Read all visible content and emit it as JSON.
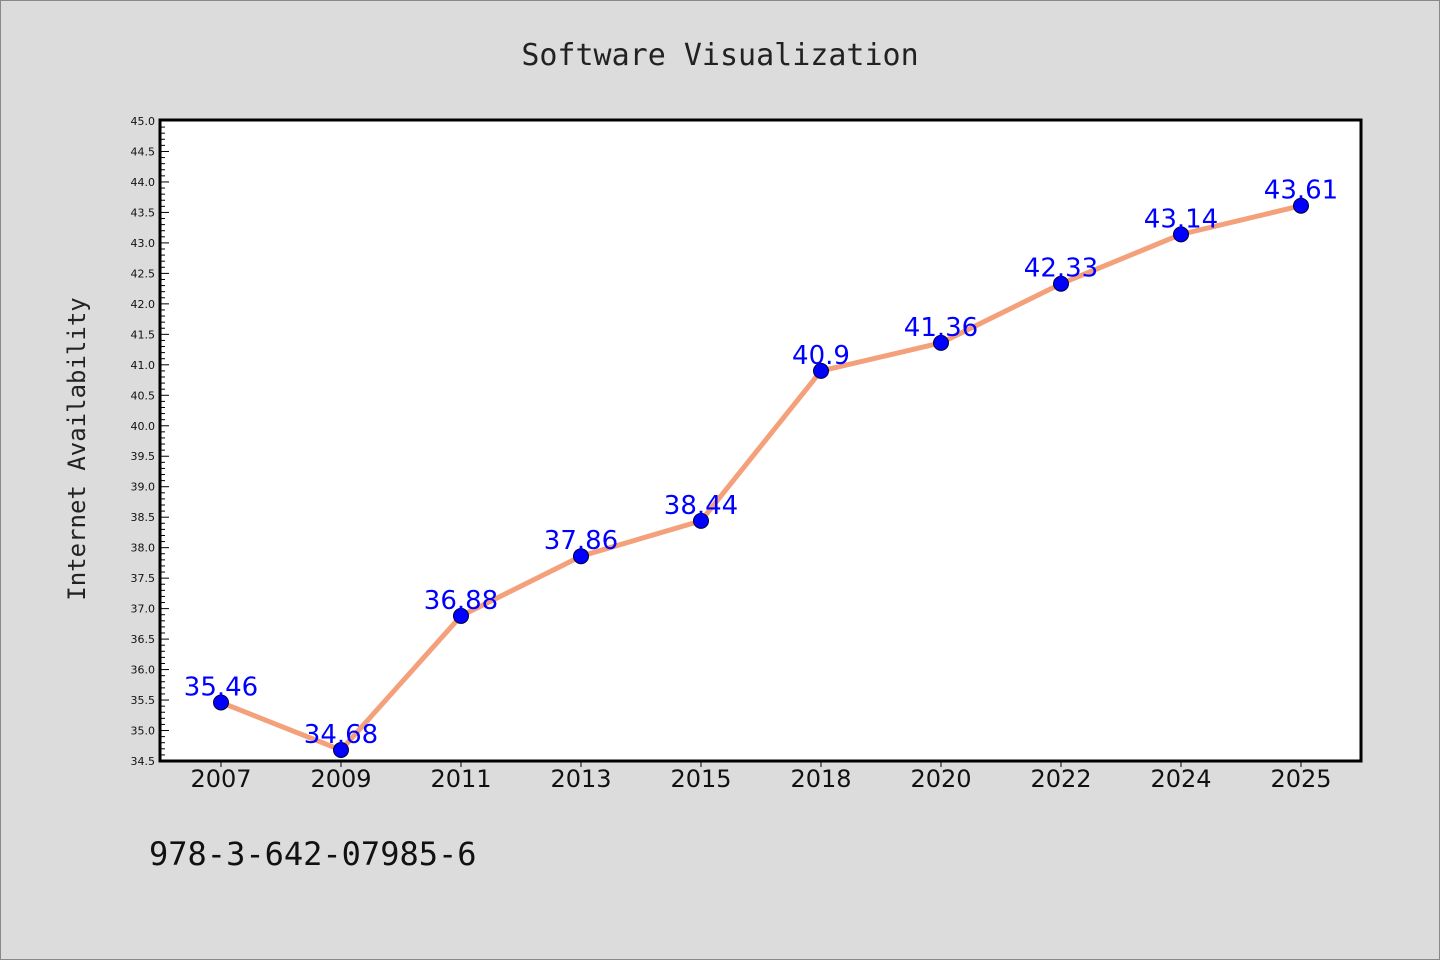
{
  "chart_data": {
    "type": "line",
    "title": "Software Visualization",
    "xlabel": "",
    "ylabel": "Internet Availability",
    "categories": [
      "2007",
      "2009",
      "2011",
      "2013",
      "2015",
      "2018",
      "2020",
      "2022",
      "2024",
      "2025"
    ],
    "series": [
      {
        "values": [
          35.46,
          34.68,
          36.88,
          37.86,
          38.44,
          40.9,
          41.36,
          42.33,
          43.14,
          43.61
        ],
        "data_labels": [
          "35.46",
          "34.68",
          "36.88",
          "37.86",
          "38.44",
          "40.9",
          "41.36",
          "42.33",
          "43.14",
          "43.61"
        ]
      }
    ],
    "ylim": [
      34.5,
      45.0
    ],
    "yticks": [
      "34.5",
      "35.0",
      "35.5",
      "36.0",
      "36.5",
      "37.0",
      "37.5",
      "38.0",
      "38.5",
      "39.0",
      "39.5",
      "40.0",
      "40.5",
      "41.0",
      "41.5",
      "42.0",
      "42.5",
      "43.0",
      "43.5",
      "44.0",
      "44.5",
      "45.0"
    ],
    "grid": false,
    "legend": "none",
    "colors": {
      "line": "#f4a07a",
      "marker": "#0000ff",
      "label": "#0000ff",
      "background": "#dcdcdc",
      "plot_background": "#ffffff"
    }
  },
  "footer": {
    "isbn": "978-3-642-07985-6"
  }
}
